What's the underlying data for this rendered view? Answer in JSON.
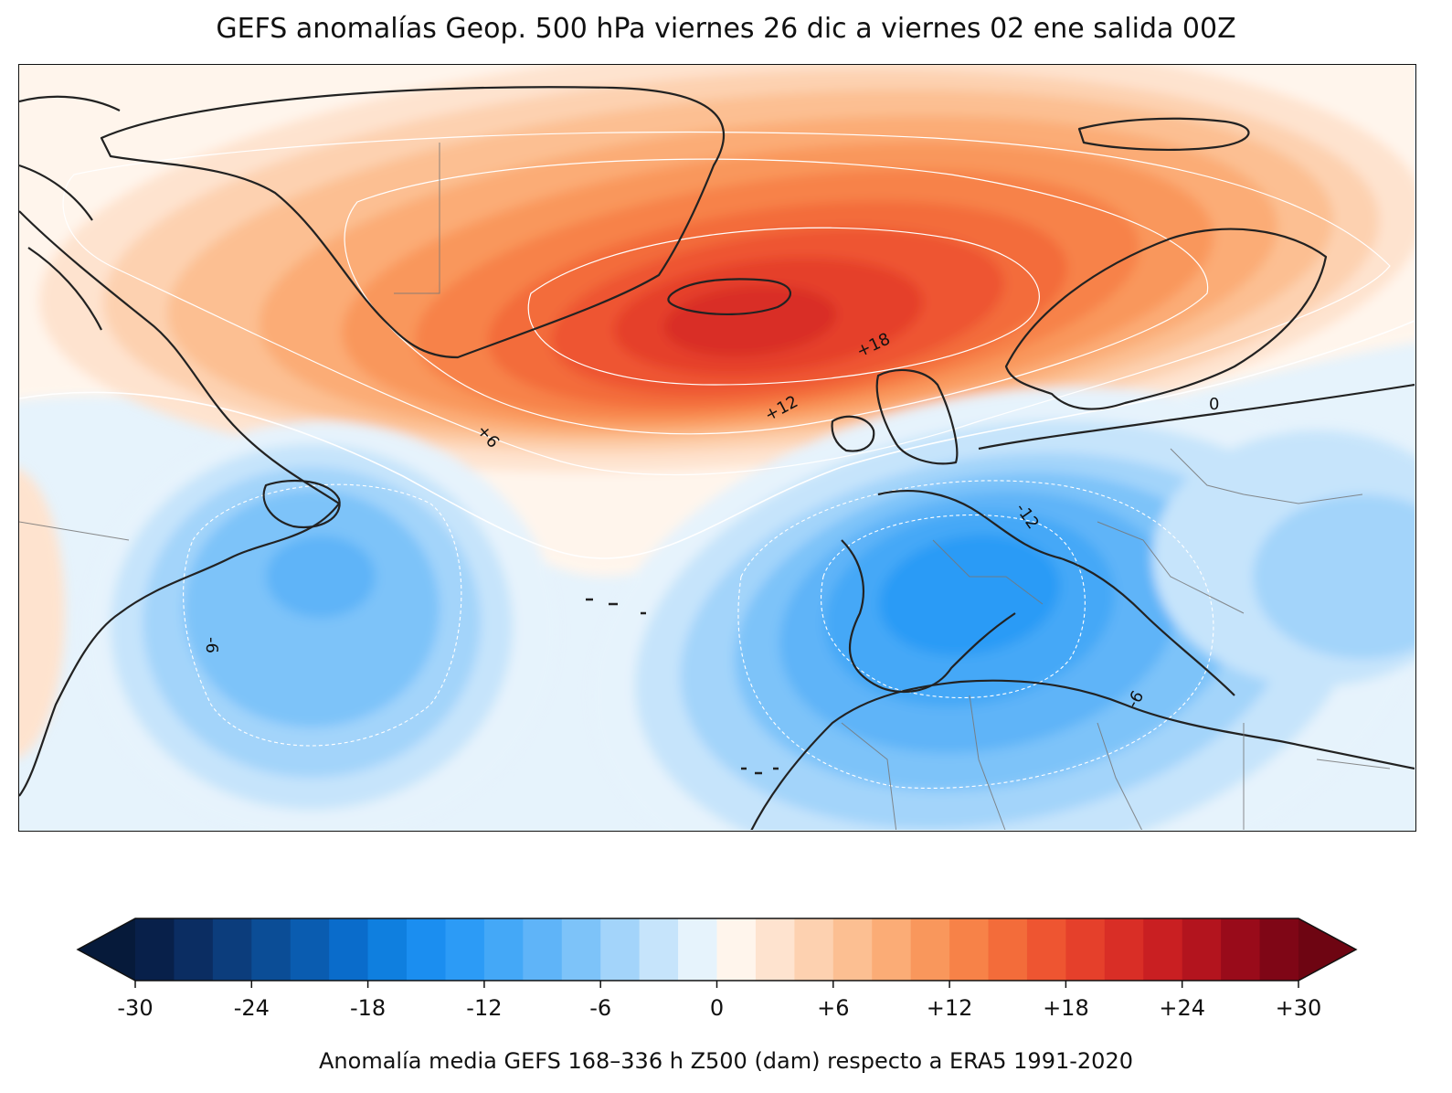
{
  "title": "GEFS anomalías Geop. 500 hPa viernes 26 dic a viernes 02 ene salida 00Z",
  "map": {
    "variable": "Z500 anomaly",
    "units": "dam",
    "contour_labels": [
      "+6",
      "+12",
      "+18",
      "0",
      "-6",
      "-12",
      "-6",
      "-6"
    ],
    "features": [
      {
        "kind": "positive-anomaly-center",
        "region": "Iceland / North Atlantic",
        "max_class": "+20"
      },
      {
        "kind": "negative-anomaly-center",
        "region": "Western Mediterranean / Iberia",
        "min_class": "-14"
      },
      {
        "kind": "negative-anomaly-center",
        "region": "Northwest Atlantic, east of North America",
        "min_class": "-10"
      }
    ]
  },
  "colorbar": {
    "ticks": [
      "-30",
      "-24",
      "-18",
      "-12",
      "-6",
      "0",
      "+6",
      "+12",
      "+18",
      "+24",
      "+30"
    ],
    "min": -30,
    "max": 30,
    "step": 2,
    "extend": "both",
    "colors": [
      "#08204a",
      "#0b2d62",
      "#0c3d7c",
      "#0b4d96",
      "#0a5cb0",
      "#0a6ccb",
      "#0f7fdf",
      "#1b8ef0",
      "#2c9bf6",
      "#44a8f7",
      "#5fb4f8",
      "#7dc3f9",
      "#a3d4fa",
      "#c6e4fb",
      "#e6f3fc",
      "#fff5ec",
      "#fee3cf",
      "#fdd1b0",
      "#fcbf92",
      "#fbac76",
      "#f9975c",
      "#f78248",
      "#f36c3a",
      "#ee5531",
      "#e5402b",
      "#d92e26",
      "#c91f22",
      "#b3141e",
      "#990b1a",
      "#7f0616"
    ],
    "under_color": "#061a3a",
    "over_color": "#6e0512",
    "caption": "Anomalía media GEFS 168–336 h Z500 (dam) respecto a ERA5 1991-2020"
  }
}
